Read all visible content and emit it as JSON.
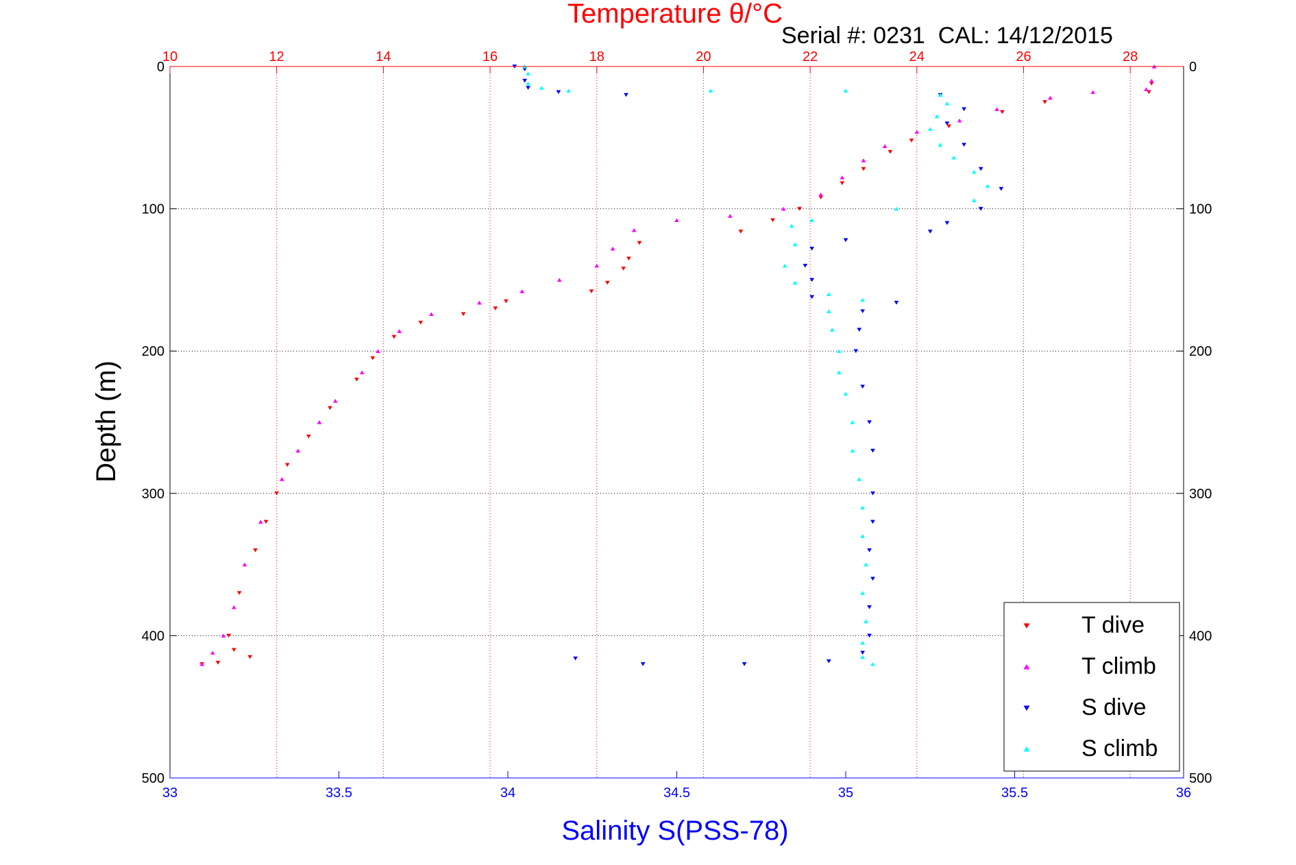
{
  "chart_data": {
    "type": "scatter",
    "title": "Temperature θ/°C",
    "subtitle": "Serial #: 0231  CAL: 14/12/2015",
    "xlabel": "Salinity S(PSS-78)",
    "x2label": "Temperature θ/°C",
    "ylabel": "Depth (m)",
    "ylim": [
      500,
      0
    ],
    "xlim_salinity": [
      33,
      36
    ],
    "xlim_temperature": [
      10,
      29
    ],
    "salinity_ticks": [
      "33",
      "33.5",
      "34",
      "34.5",
      "35",
      "35.5",
      "36"
    ],
    "temperature_ticks": [
      "10",
      "12",
      "14",
      "16",
      "18",
      "20",
      "22",
      "24",
      "26",
      "28"
    ],
    "depth_ticks": [
      "0",
      "100",
      "200",
      "300",
      "400",
      "500"
    ],
    "grid": "on",
    "legend_position": "bottom-right",
    "series": [
      {
        "name": "T dive",
        "axis": "temperature",
        "color": "#ff0000",
        "marker": "triangle-down",
        "points": [
          [
            28.4,
            12
          ],
          [
            28.35,
            18
          ],
          [
            26.4,
            25
          ],
          [
            25.6,
            32
          ],
          [
            24.6,
            42
          ],
          [
            23.9,
            52
          ],
          [
            23.5,
            60
          ],
          [
            23.0,
            72
          ],
          [
            22.6,
            82
          ],
          [
            22.2,
            92
          ],
          [
            21.8,
            100
          ],
          [
            21.3,
            108
          ],
          [
            20.7,
            116
          ],
          [
            18.8,
            124
          ],
          [
            18.6,
            135
          ],
          [
            18.5,
            142
          ],
          [
            18.2,
            152
          ],
          [
            17.9,
            158
          ],
          [
            16.3,
            165
          ],
          [
            16.1,
            170
          ],
          [
            15.5,
            174
          ],
          [
            14.7,
            180
          ],
          [
            14.2,
            190
          ],
          [
            13.8,
            205
          ],
          [
            13.5,
            220
          ],
          [
            13.0,
            240
          ],
          [
            12.6,
            260
          ],
          [
            12.2,
            280
          ],
          [
            12.0,
            300
          ],
          [
            11.8,
            320
          ],
          [
            11.6,
            340
          ],
          [
            11.3,
            370
          ],
          [
            11.1,
            400
          ],
          [
            11.2,
            410
          ],
          [
            11.5,
            415
          ],
          [
            10.9,
            419
          ],
          [
            10.6,
            420
          ]
        ]
      },
      {
        "name": "T climb",
        "axis": "temperature",
        "color": "#ff00ff",
        "marker": "triangle-up",
        "points": [
          [
            28.45,
            0
          ],
          [
            28.4,
            10
          ],
          [
            28.3,
            16
          ],
          [
            27.3,
            18
          ],
          [
            26.5,
            22
          ],
          [
            25.5,
            30
          ],
          [
            24.8,
            38
          ],
          [
            24.0,
            46
          ],
          [
            23.4,
            56
          ],
          [
            23.0,
            66
          ],
          [
            22.6,
            78
          ],
          [
            22.2,
            90
          ],
          [
            21.5,
            100
          ],
          [
            20.5,
            105
          ],
          [
            19.5,
            108
          ],
          [
            18.7,
            115
          ],
          [
            18.3,
            128
          ],
          [
            18.0,
            140
          ],
          [
            17.3,
            150
          ],
          [
            16.6,
            158
          ],
          [
            15.8,
            166
          ],
          [
            14.9,
            174
          ],
          [
            14.3,
            186
          ],
          [
            13.9,
            200
          ],
          [
            13.6,
            215
          ],
          [
            13.1,
            235
          ],
          [
            12.8,
            250
          ],
          [
            12.4,
            270
          ],
          [
            12.1,
            290
          ],
          [
            11.7,
            320
          ],
          [
            11.4,
            350
          ],
          [
            11.2,
            380
          ],
          [
            11.0,
            400
          ],
          [
            10.8,
            412
          ],
          [
            10.6,
            420
          ]
        ]
      },
      {
        "name": "S dive",
        "axis": "salinity",
        "color": "#0000ff",
        "marker": "triangle-down",
        "points": [
          [
            34.02,
            0
          ],
          [
            34.05,
            2
          ],
          [
            34.05,
            10
          ],
          [
            34.06,
            15
          ],
          [
            34.15,
            18
          ],
          [
            34.35,
            20
          ],
          [
            35.28,
            20
          ],
          [
            35.35,
            30
          ],
          [
            35.3,
            40
          ],
          [
            35.35,
            55
          ],
          [
            35.4,
            72
          ],
          [
            35.46,
            86
          ],
          [
            35.4,
            100
          ],
          [
            35.3,
            110
          ],
          [
            35.25,
            116
          ],
          [
            35.0,
            122
          ],
          [
            34.9,
            128
          ],
          [
            34.88,
            140
          ],
          [
            34.9,
            150
          ],
          [
            34.9,
            162
          ],
          [
            35.15,
            166
          ],
          [
            35.05,
            172
          ],
          [
            35.04,
            185
          ],
          [
            35.03,
            200
          ],
          [
            35.05,
            225
          ],
          [
            35.07,
            250
          ],
          [
            35.08,
            270
          ],
          [
            35.08,
            300
          ],
          [
            35.08,
            320
          ],
          [
            35.07,
            340
          ],
          [
            35.08,
            360
          ],
          [
            35.07,
            380
          ],
          [
            35.07,
            400
          ],
          [
            35.05,
            412
          ],
          [
            34.95,
            418
          ],
          [
            34.7,
            420
          ],
          [
            34.4,
            420
          ],
          [
            34.2,
            416
          ]
        ]
      },
      {
        "name": "S climb",
        "axis": "salinity",
        "color": "#00ffff",
        "marker": "triangle-up",
        "points": [
          [
            34.05,
            0
          ],
          [
            34.06,
            5
          ],
          [
            34.06,
            12
          ],
          [
            34.1,
            15
          ],
          [
            34.18,
            17
          ],
          [
            34.6,
            17
          ],
          [
            35.0,
            17
          ],
          [
            35.28,
            20
          ],
          [
            35.3,
            26
          ],
          [
            35.27,
            35
          ],
          [
            35.25,
            44
          ],
          [
            35.28,
            55
          ],
          [
            35.32,
            64
          ],
          [
            35.38,
            74
          ],
          [
            35.42,
            84
          ],
          [
            35.38,
            94
          ],
          [
            35.15,
            100
          ],
          [
            34.9,
            108
          ],
          [
            34.84,
            112
          ],
          [
            34.85,
            125
          ],
          [
            34.82,
            140
          ],
          [
            34.85,
            152
          ],
          [
            34.95,
            160
          ],
          [
            35.05,
            164
          ],
          [
            34.95,
            172
          ],
          [
            34.96,
            185
          ],
          [
            34.98,
            200
          ],
          [
            34.98,
            215
          ],
          [
            35.0,
            230
          ],
          [
            35.02,
            250
          ],
          [
            35.02,
            270
          ],
          [
            35.04,
            290
          ],
          [
            35.05,
            310
          ],
          [
            35.05,
            330
          ],
          [
            35.06,
            350
          ],
          [
            35.05,
            370
          ],
          [
            35.06,
            390
          ],
          [
            35.05,
            405
          ],
          [
            35.05,
            415
          ],
          [
            35.08,
            420
          ]
        ]
      }
    ]
  }
}
